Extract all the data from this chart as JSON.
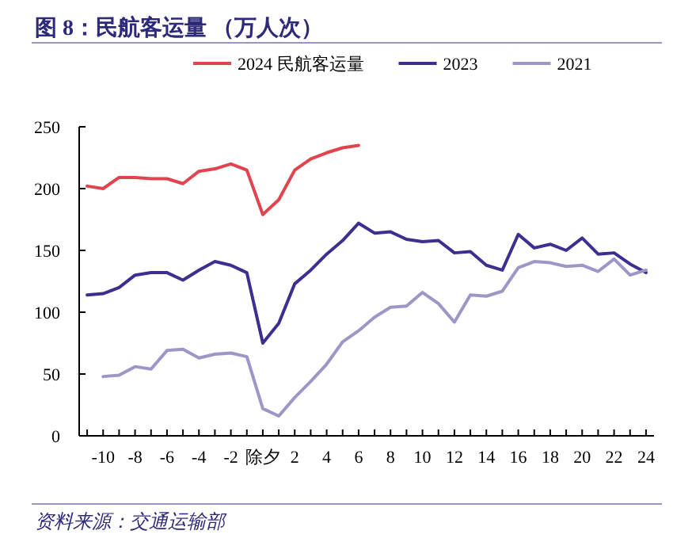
{
  "chart_data": {
    "type": "line",
    "title": "图 8：民航客运量 （万人次）",
    "x": [
      -11,
      -10,
      -9,
      -8,
      -7,
      -6,
      -5,
      -4,
      -3,
      -2,
      -1,
      0,
      1,
      2,
      3,
      4,
      5,
      6,
      7,
      8,
      9,
      10,
      11,
      12,
      13,
      14,
      15,
      16,
      17,
      18,
      19,
      20,
      21,
      22,
      23,
      24
    ],
    "series": [
      {
        "name": "2024 民航客运量",
        "color": "#e0454f",
        "values": [
          202,
          200,
          209,
          209,
          208,
          208,
          204,
          214,
          216,
          220,
          215,
          179,
          191,
          215,
          224,
          229,
          233,
          235,
          null,
          null,
          null,
          null,
          null,
          null,
          null,
          null,
          null,
          null,
          null,
          null,
          null,
          null,
          null,
          null,
          null,
          null
        ]
      },
      {
        "name": "2023",
        "color": "#3c2f8f",
        "values": [
          114,
          115,
          120,
          130,
          132,
          132,
          126,
          134,
          141,
          138,
          132,
          75,
          91,
          123,
          134,
          147,
          158,
          172,
          164,
          165,
          159,
          157,
          158,
          148,
          149,
          138,
          134,
          163,
          152,
          155,
          150,
          160,
          147,
          148,
          139,
          132
        ]
      },
      {
        "name": "2021",
        "color": "#9c97c6",
        "values": [
          null,
          48,
          49,
          56,
          54,
          69,
          70,
          63,
          66,
          67,
          64,
          22,
          16,
          31,
          44,
          58,
          76,
          85,
          96,
          104,
          105,
          116,
          107,
          92,
          114,
          113,
          117,
          136,
          141,
          140,
          137,
          138,
          133,
          143,
          130,
          134
        ]
      }
    ],
    "xlim": [
      -11.5,
      24.5
    ],
    "ylim": [
      0,
      250
    ],
    "xticks": [
      {
        "value": -11,
        "label": null
      },
      -10,
      {
        "value": -9,
        "label": null
      },
      -8,
      {
        "value": -7,
        "label": null
      },
      -6,
      {
        "value": -5,
        "label": null
      },
      -4,
      {
        "value": -3,
        "label": null
      },
      -2,
      {
        "value": -1,
        "label": null
      },
      {
        "value": 0,
        "label": "除夕"
      },
      {
        "value": 1,
        "label": null
      },
      2,
      {
        "value": 3,
        "label": null
      },
      4,
      {
        "value": 5,
        "label": null
      },
      6,
      {
        "value": 7,
        "label": null
      },
      8,
      {
        "value": 9,
        "label": null
      },
      10,
      {
        "value": 11,
        "label": null
      },
      12,
      {
        "value": 13,
        "label": null
      },
      14,
      {
        "value": 15,
        "label": null
      },
      16,
      {
        "value": 17,
        "label": null
      },
      18,
      {
        "value": 19,
        "label": null
      },
      20,
      {
        "value": 21,
        "label": null
      },
      22,
      {
        "value": 23,
        "label": null
      },
      24
    ],
    "yticks": [
      0,
      50,
      100,
      150,
      200,
      250
    ],
    "legend": "top",
    "annotations": [
      "资料来源：交通运输部"
    ]
  }
}
